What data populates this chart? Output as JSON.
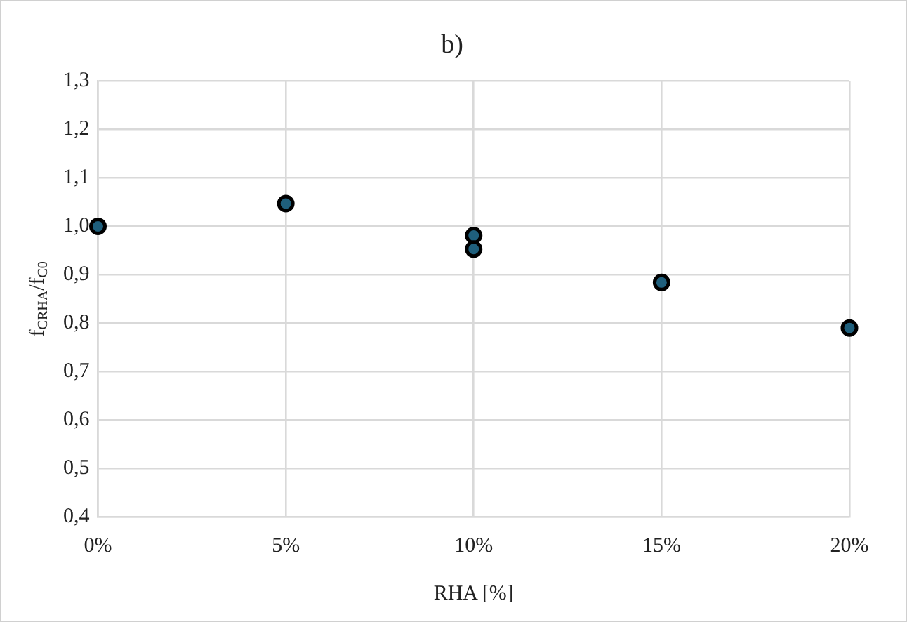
{
  "chart_data": {
    "type": "scatter",
    "title": "b)",
    "xlabel": "RHA [%]",
    "ylabel": "f$_{CRHA}$/f$_{C0}$",
    "x": [
      0,
      5,
      10,
      10,
      15,
      20
    ],
    "series": [
      {
        "color": "#1f5f7c",
        "values": [
          1.0,
          1.047,
          0.981,
          0.953,
          0.884,
          0.79
        ]
      }
    ],
    "xlim": [
      0,
      20
    ],
    "xticks": [
      {
        "value": 0,
        "label": "0%"
      },
      {
        "value": 5,
        "label": "5%"
      },
      {
        "value": 10,
        "label": "10%"
      },
      {
        "value": 15,
        "label": "15%"
      },
      {
        "value": 20,
        "label": "20%"
      }
    ],
    "ylim": [
      0.4,
      1.3
    ],
    "yticks": [
      {
        "value": 0.4,
        "label": "0,4"
      },
      {
        "value": 0.5,
        "label": "0,5"
      },
      {
        "value": 0.6,
        "label": "0,6"
      },
      {
        "value": 0.7,
        "label": "0,7"
      },
      {
        "value": 0.8,
        "label": "0,8"
      },
      {
        "value": 0.9,
        "label": "0,9"
      },
      {
        "value": 1.0,
        "label": "1,0"
      },
      {
        "value": 1.1,
        "label": "1,1"
      },
      {
        "value": 1.2,
        "label": "1,2"
      },
      {
        "value": 1.3,
        "label": "1,3"
      }
    ],
    "grid": true,
    "marker": "circle",
    "legend": false
  }
}
